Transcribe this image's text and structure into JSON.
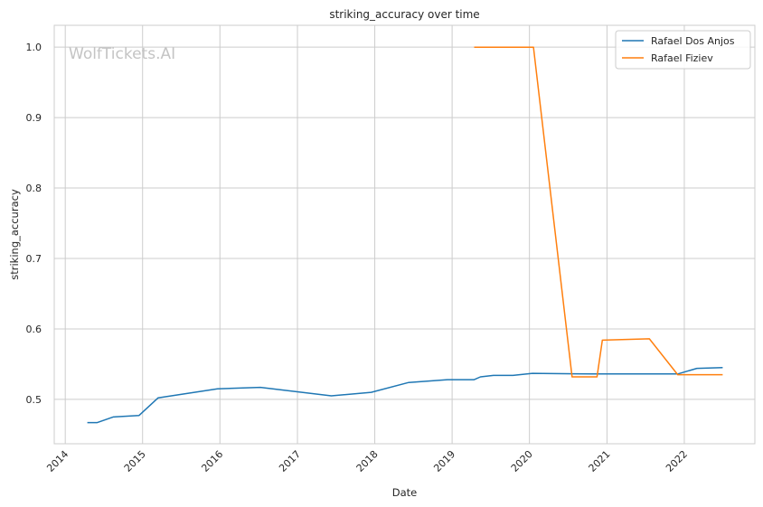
{
  "chart_data": {
    "type": "line",
    "title": "striking_accuracy over time",
    "xlabel": "Date",
    "ylabel": "striking_accuracy",
    "x_ticks": [
      "2014",
      "2015",
      "2016",
      "2017",
      "2018",
      "2019",
      "2020",
      "2021",
      "2022"
    ],
    "y_ticks": [
      "0.5",
      "0.6",
      "0.7",
      "0.8",
      "0.9",
      "1.0"
    ],
    "xlim": [
      "2013-11-10",
      "2022-11-30"
    ],
    "ylim": [
      0.437,
      1.031
    ],
    "grid": true,
    "legend_position": "top-right",
    "watermark": "WolfTickets.AI",
    "series": [
      {
        "name": "Rafael Dos Anjos",
        "color": "#1f77b4",
        "points": [
          [
            "2014-04-15",
            0.467
          ],
          [
            "2014-06-01",
            0.467
          ],
          [
            "2014-08-15",
            0.475
          ],
          [
            "2014-12-15",
            0.477
          ],
          [
            "2015-03-15",
            0.502
          ],
          [
            "2015-12-20",
            0.515
          ],
          [
            "2016-07-10",
            0.517
          ],
          [
            "2017-06-10",
            0.505
          ],
          [
            "2017-12-15",
            0.51
          ],
          [
            "2018-06-10",
            0.524
          ],
          [
            "2018-12-10",
            0.528
          ],
          [
            "2019-04-15",
            0.528
          ],
          [
            "2019-05-15",
            0.532
          ],
          [
            "2019-07-15",
            0.534
          ],
          [
            "2019-10-15",
            0.534
          ],
          [
            "2020-01-15",
            0.537
          ],
          [
            "2020-11-01",
            0.536
          ],
          [
            "2021-06-01",
            0.536
          ],
          [
            "2021-12-01",
            0.536
          ],
          [
            "2022-03-01",
            0.544
          ],
          [
            "2022-07-01",
            0.545
          ]
        ]
      },
      {
        "name": "Rafael Fiziev",
        "color": "#ff7f0e",
        "points": [
          [
            "2019-04-15",
            1.0
          ],
          [
            "2020-01-20",
            1.0
          ],
          [
            "2020-07-20",
            0.532
          ],
          [
            "2020-11-15",
            0.532
          ],
          [
            "2020-12-10",
            0.584
          ],
          [
            "2021-07-20",
            0.586
          ],
          [
            "2021-12-01",
            0.535
          ],
          [
            "2022-07-01",
            0.535
          ]
        ]
      }
    ]
  }
}
